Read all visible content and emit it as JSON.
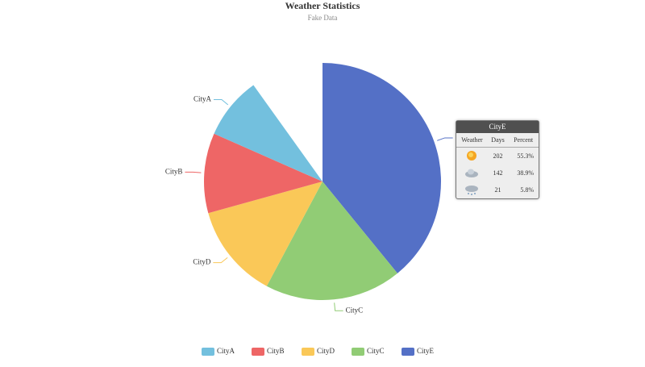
{
  "chart_data": {
    "type": "pie",
    "title": "Weather Statistics",
    "subtitle": "Fake Data",
    "categories": [
      "CityA",
      "CityB",
      "CityD",
      "CityC",
      "CityE"
    ],
    "values": [
      8.5,
      10.9,
      12.9,
      18.7,
      39.1
    ],
    "colors": [
      "#73c0de",
      "#ee6666",
      "#fac858",
      "#91cc75",
      "#5470c6"
    ],
    "legend": "bottom"
  },
  "tooltip": {
    "title": "CityE",
    "columns": [
      "Weather",
      "Days",
      "Percent"
    ],
    "rows": [
      [
        "202",
        "55.3%"
      ],
      [
        "142",
        "38.9%"
      ],
      [
        "21",
        "5.8%"
      ]
    ]
  }
}
